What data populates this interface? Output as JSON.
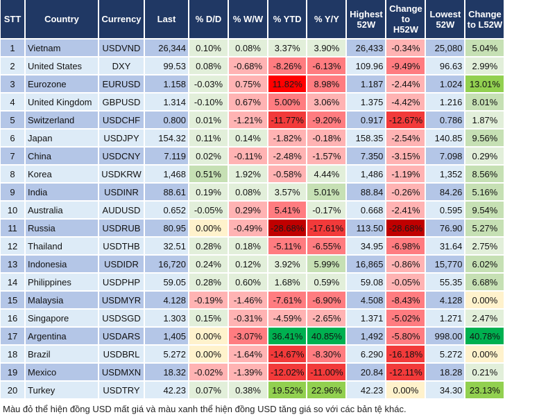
{
  "palette": {
    "lg": "#e2efda",
    "mg": "#c6e0b4",
    "g2": "#92d050",
    "g3": "#00b050",
    "y": "#fff2cc",
    "lr": "#ffb3b3",
    "mr": "#ff7c80",
    "r2": "#f23a3a",
    "r3": "#c00000",
    "r4": "#ff0000"
  },
  "headers": [
    "STT",
    "Country",
    "Currency",
    "Last",
    "% D/D",
    "% W/W",
    "% YTD",
    "% Y/Y",
    "Highest 52W",
    "Change to H52W",
    "Lowest 52W",
    "Change to L52W"
  ],
  "rows": [
    {
      "cells": [
        "1",
        "Vietnam",
        "USDVND",
        "26,344",
        "0.10%",
        "0.08%",
        "3.37%",
        "3.90%",
        "26,433",
        "-0.34%",
        "25,080",
        "5.04%"
      ],
      "tones": [
        "lg",
        "lg",
        "lg",
        "lg",
        "lr",
        "mg"
      ]
    },
    {
      "cells": [
        "2",
        "United States",
        "DXY",
        "99.53",
        "0.08%",
        "-0.68%",
        "-8.26%",
        "-6.13%",
        "109.96",
        "-9.49%",
        "96.63",
        "2.99%"
      ],
      "tones": [
        "lg",
        "lr",
        "mr",
        "mr",
        "mr",
        "lg"
      ]
    },
    {
      "cells": [
        "3",
        "Eurozone",
        "EURUSD",
        "1.158",
        "-0.03%",
        "0.75%",
        "11.82%",
        "8.98%",
        "1.187",
        "-2.44%",
        "1.024",
        "13.01%"
      ],
      "tones": [
        "lg",
        "lr",
        "r4",
        "mr",
        "lr",
        "g2"
      ]
    },
    {
      "cells": [
        "4",
        "United Kingdom",
        "GBPUSD",
        "1.314",
        "-0.10%",
        "0.67%",
        "5.00%",
        "3.06%",
        "1.375",
        "-4.42%",
        "1.216",
        "8.01%"
      ],
      "tones": [
        "lg",
        "lr",
        "mr",
        "lr",
        "lr",
        "mg"
      ]
    },
    {
      "cells": [
        "5",
        "Switzerland",
        "USDCHF",
        "0.800",
        "0.01%",
        "-1.21%",
        "-11.77%",
        "-9.20%",
        "0.917",
        "-12.67%",
        "0.786",
        "1.87%"
      ],
      "tones": [
        "lg",
        "lr",
        "r2",
        "mr",
        "r2",
        "lg"
      ]
    },
    {
      "cells": [
        "6",
        "Japan",
        "USDJPY",
        "154.32",
        "0.11%",
        "0.14%",
        "-1.82%",
        "-0.18%",
        "158.35",
        "-2.54%",
        "140.85",
        "9.56%"
      ],
      "tones": [
        "lg",
        "lg",
        "lr",
        "lr",
        "lr",
        "mg"
      ]
    },
    {
      "cells": [
        "7",
        "China",
        "USDCNY",
        "7.119",
        "0.02%",
        "-0.11%",
        "-2.48%",
        "-1.57%",
        "7.350",
        "-3.15%",
        "7.098",
        "0.29%"
      ],
      "tones": [
        "lg",
        "lr",
        "lr",
        "lr",
        "lr",
        "lg"
      ]
    },
    {
      "cells": [
        "8",
        "Korea",
        "USDKRW",
        "1,468",
        "0.51%",
        "1.92%",
        "-0.58%",
        "4.44%",
        "1,486",
        "-1.19%",
        "1,352",
        "8.56%"
      ],
      "tones": [
        "mg",
        "lg",
        "lr",
        "lg",
        "lr",
        "mg"
      ]
    },
    {
      "cells": [
        "9",
        "India",
        "USDINR",
        "88.61",
        "0.19%",
        "0.08%",
        "3.57%",
        "5.01%",
        "88.84",
        "-0.26%",
        "84.26",
        "5.16%"
      ],
      "tones": [
        "lg",
        "lg",
        "lg",
        "mg",
        "lr",
        "mg"
      ]
    },
    {
      "cells": [
        "10",
        "Australia",
        "AUDUSD",
        "0.652",
        "-0.05%",
        "0.29%",
        "5.41%",
        "-0.17%",
        "0.668",
        "-2.41%",
        "0.595",
        "9.54%"
      ],
      "tones": [
        "lg",
        "lr",
        "mr",
        "lg",
        "lr",
        "mg"
      ]
    },
    {
      "cells": [
        "11",
        "Russia",
        "USDRUB",
        "80.95",
        "0.00%",
        "-0.49%",
        "-28.68%",
        "-17.61%",
        "113.50",
        "-28.68%",
        "76.90",
        "5.27%"
      ],
      "tones": [
        "y",
        "lr",
        "r3",
        "r2",
        "r3",
        "mg"
      ]
    },
    {
      "cells": [
        "12",
        "Thailand",
        "USDTHB",
        "32.51",
        "0.28%",
        "0.18%",
        "-5.11%",
        "-6.55%",
        "34.95",
        "-6.98%",
        "31.64",
        "2.75%"
      ],
      "tones": [
        "lg",
        "lg",
        "mr",
        "mr",
        "mr",
        "lg"
      ]
    },
    {
      "cells": [
        "13",
        "Indonesia",
        "USDIDR",
        "16,720",
        "0.24%",
        "0.12%",
        "3.92%",
        "5.99%",
        "16,865",
        "-0.86%",
        "15,770",
        "6.02%"
      ],
      "tones": [
        "lg",
        "lg",
        "lg",
        "mg",
        "lr",
        "mg"
      ]
    },
    {
      "cells": [
        "14",
        "Philippines",
        "USDPHP",
        "59.05",
        "0.28%",
        "0.60%",
        "1.68%",
        "0.59%",
        "59.08",
        "-0.05%",
        "55.35",
        "6.68%"
      ],
      "tones": [
        "lg",
        "lg",
        "lg",
        "lg",
        "lr",
        "mg"
      ]
    },
    {
      "cells": [
        "15",
        "Malaysia",
        "USDMYR",
        "4.128",
        "-0.19%",
        "-1.46%",
        "-7.61%",
        "-6.90%",
        "4.508",
        "-8.43%",
        "4.128",
        "0.00%"
      ],
      "tones": [
        "lr",
        "lr",
        "mr",
        "mr",
        "mr",
        "y"
      ]
    },
    {
      "cells": [
        "16",
        "Singapore",
        "USDSGD",
        "1.303",
        "0.15%",
        "-0.31%",
        "-4.59%",
        "-2.65%",
        "1.371",
        "-5.02%",
        "1.271",
        "2.47%"
      ],
      "tones": [
        "lg",
        "lr",
        "lr",
        "lr",
        "mr",
        "lg"
      ]
    },
    {
      "cells": [
        "17",
        "Argentina",
        "USDARS",
        "1,405",
        "0.00%",
        "-3.07%",
        "36.41%",
        "40.85%",
        "1,492",
        "-5.80%",
        "998.00",
        "40.78%"
      ],
      "tones": [
        "y",
        "mr",
        "g3",
        "g3",
        "mr",
        "g3"
      ]
    },
    {
      "cells": [
        "18",
        "Brazil",
        "USDBRL",
        "5.272",
        "0.00%",
        "-1.64%",
        "-14.67%",
        "-8.30%",
        "6.290",
        "-16.18%",
        "5.272",
        "0.00%"
      ],
      "tones": [
        "y",
        "lr",
        "r2",
        "mr",
        "r2",
        "y"
      ]
    },
    {
      "cells": [
        "19",
        "Mexico",
        "USDMXN",
        "18.32",
        "-0.02%",
        "-1.39%",
        "-12.02%",
        "-11.00%",
        "20.84",
        "-12.11%",
        "18.28",
        "0.21%"
      ],
      "tones": [
        "lr",
        "lr",
        "r2",
        "r2",
        "r2",
        "lg"
      ]
    },
    {
      "cells": [
        "20",
        "Turkey",
        "USDTRY",
        "42.23",
        "0.07%",
        "0.38%",
        "19.52%",
        "22.96%",
        "42.23",
        "0.00%",
        "34.30",
        "23.13%"
      ],
      "tones": [
        "lg",
        "lg",
        "g2",
        "g2",
        "y",
        "g2"
      ]
    }
  ],
  "footnote": "Màu đỏ thể hiện đồng USD mất giá và màu xanh thể hiện đồng USD tăng giá so với các bản tệ khác."
}
